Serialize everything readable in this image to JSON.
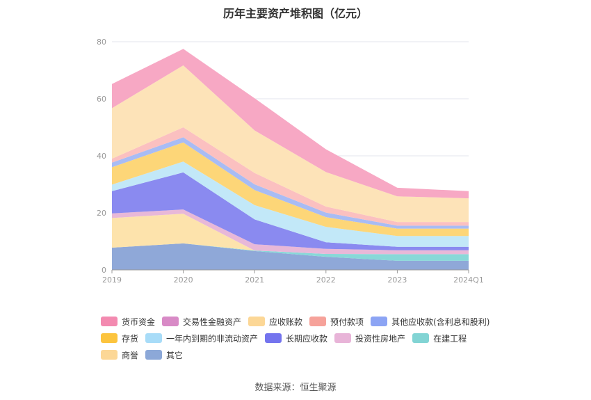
{
  "chart_data": {
    "type": "area",
    "stacked": true,
    "title": "历年主要资产堆积图（亿元）",
    "categories": [
      "2019",
      "2020",
      "2021",
      "2022",
      "2023",
      "2024Q1"
    ],
    "y_ticks": [
      "0",
      "20",
      "40",
      "60",
      "80"
    ],
    "ylim": [
      0,
      80
    ],
    "series": [
      {
        "name": "其它",
        "color": "#8fa8d8",
        "values": [
          7.8,
          9.3,
          6.6,
          4.6,
          3.2,
          3.2
        ]
      },
      {
        "name": "在建工程",
        "color": "#88d8d8",
        "values": [
          0,
          0,
          0.2,
          1.0,
          2.3,
          2.3
        ]
      },
      {
        "name": "商誉",
        "color": "#fde3ac",
        "values": [
          10.4,
          10.4,
          0,
          0,
          0,
          0
        ]
      },
      {
        "name": "投资性房地产",
        "color": "#e8b8d8",
        "values": [
          1.6,
          1.5,
          2.2,
          1.8,
          1.4,
          1.4
        ]
      },
      {
        "name": "长期应收款",
        "color": "#8a8af0",
        "values": [
          7.8,
          13.0,
          8.7,
          2.3,
          1.2,
          1.2
        ]
      },
      {
        "name": "一年内到期的非流动资产",
        "color": "#c2e8f8",
        "values": [
          2.3,
          3.8,
          5.0,
          5.4,
          3.8,
          3.8
        ]
      },
      {
        "name": "存货",
        "color": "#fdd678",
        "values": [
          6.1,
          6.7,
          5.3,
          3.4,
          2.6,
          2.6
        ]
      },
      {
        "name": "其他应收款(含利息和股利)",
        "color": "#a8bcf4",
        "values": [
          1.6,
          1.8,
          2.0,
          1.6,
          1.0,
          1.0
        ]
      },
      {
        "name": "预付款项",
        "color": "#fbc0c0",
        "values": [
          1.4,
          3.5,
          4.0,
          2.1,
          1.3,
          1.3
        ]
      },
      {
        "name": "应收账款",
        "color": "#fde3b8",
        "values": [
          17.7,
          21.7,
          14.9,
          12.1,
          9.0,
          8.3
        ]
      },
      {
        "name": "交易性金融资产",
        "color": "#e48ac8",
        "values": [
          0,
          0,
          0,
          0,
          0,
          0
        ]
      },
      {
        "name": "货币资金",
        "color": "#f7a8c4",
        "values": [
          8.5,
          5.8,
          11.3,
          8.0,
          3.0,
          2.5
        ]
      }
    ]
  },
  "legend": {
    "rows": [
      [
        {
          "name": "货币资金",
          "color": "#f38ab0"
        },
        {
          "name": "交易性金融资产",
          "color": "#d88ac6"
        },
        {
          "name": "应收账款",
          "color": "#fcd796"
        },
        {
          "name": "预付款项",
          "color": "#f6a29a"
        },
        {
          "name": "其他应收款(含利息和股利)",
          "color": "#8ca4f4"
        }
      ],
      [
        {
          "name": "存货",
          "color": "#fcc43e"
        },
        {
          "name": "一年内到期的非流动资产",
          "color": "#a8dcf8"
        },
        {
          "name": "长期应收款",
          "color": "#7474ee"
        },
        {
          "name": "投资性房地产",
          "color": "#e8b4d8"
        },
        {
          "name": "在建工程",
          "color": "#82d4d4"
        }
      ],
      [
        {
          "name": "商誉",
          "color": "#fcd796"
        },
        {
          "name": "其它",
          "color": "#8ca8d8"
        }
      ]
    ]
  },
  "footer": {
    "source": "数据来源：恒生聚源"
  }
}
